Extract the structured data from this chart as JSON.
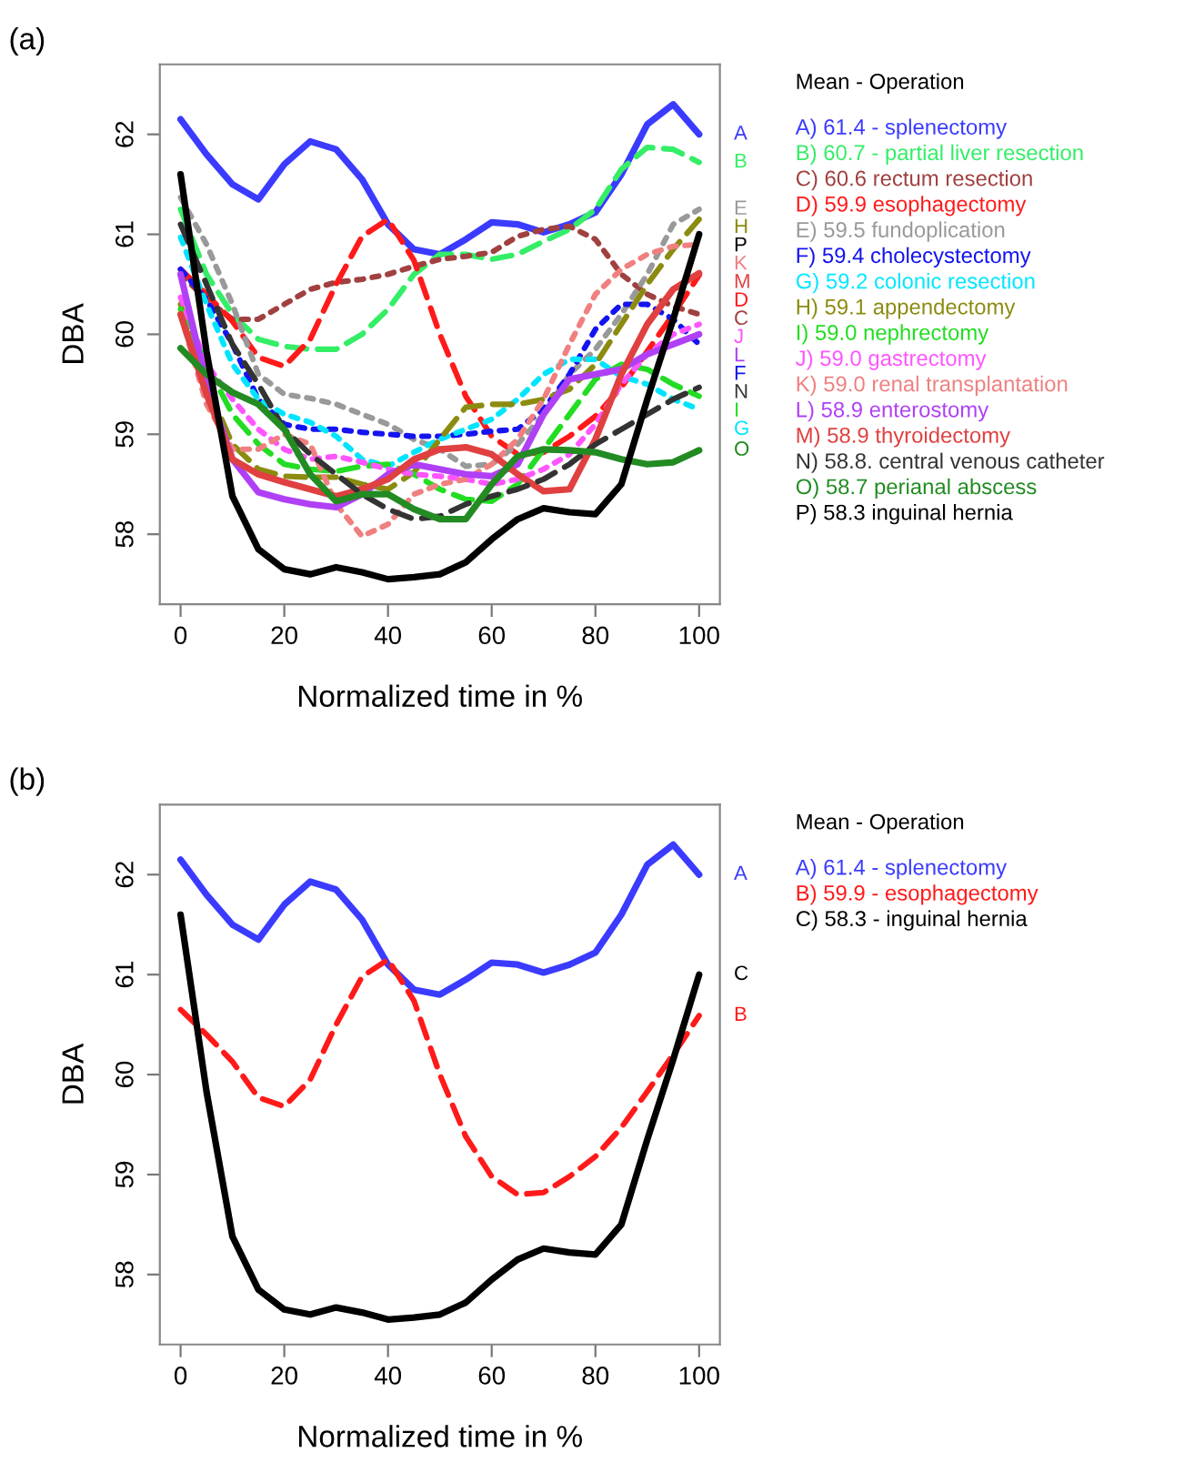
{
  "chart_data": [
    {
      "type": "line",
      "title": "(a)",
      "xlabel": "Normalized time in %",
      "ylabel": "DBA",
      "legend_title": "Mean - Operation",
      "legend": "right",
      "grid": false,
      "x": [
        0,
        5,
        10,
        15,
        20,
        25,
        30,
        35,
        40,
        45,
        50,
        55,
        60,
        65,
        70,
        75,
        80,
        85,
        90,
        95,
        100
      ],
      "xlim": [
        -4,
        104
      ],
      "ylim": [
        57.3,
        62.7
      ],
      "xticks": [
        0,
        20,
        40,
        60,
        80,
        100
      ],
      "yticks": [
        58,
        59,
        60,
        61,
        62
      ],
      "series": [
        {
          "name": "A) 61.4 - splenectomy",
          "color": "#3b3bff",
          "line_style": "solid",
          "values": [
            62.15,
            61.8,
            61.5,
            61.35,
            61.7,
            61.93,
            61.85,
            61.55,
            61.1,
            60.85,
            60.8,
            60.95,
            61.12,
            61.1,
            61.02,
            61.1,
            61.22,
            61.6,
            62.1,
            62.3,
            62.0
          ]
        },
        {
          "name": "B) 60.7 - partial liver resection",
          "color": "#33ee66",
          "line_style": "dashed",
          "values": [
            61.25,
            60.6,
            60.2,
            59.95,
            59.88,
            59.85,
            59.85,
            60.0,
            60.25,
            60.6,
            60.8,
            60.8,
            60.75,
            60.8,
            60.93,
            61.05,
            61.25,
            61.65,
            61.87,
            61.85,
            61.72
          ]
        },
        {
          "name": "C) 60.6 rectum resection",
          "color": "#a04040",
          "line_style": "dotted",
          "values": [
            60.6,
            60.35,
            60.15,
            60.15,
            60.3,
            60.45,
            60.52,
            60.55,
            60.6,
            60.68,
            60.75,
            60.78,
            60.82,
            60.98,
            61.05,
            61.08,
            60.95,
            60.6,
            60.4,
            60.28,
            60.2
          ]
        },
        {
          "name": "D) 59.9 esophagectomy",
          "color": "#ff1a1a",
          "line_style": "dashed",
          "values": [
            60.65,
            60.4,
            60.13,
            59.77,
            59.68,
            59.95,
            60.5,
            60.98,
            61.15,
            60.74,
            60.0,
            59.38,
            58.98,
            58.8,
            58.82,
            58.98,
            59.18,
            59.47,
            59.83,
            60.2,
            60.59
          ]
        },
        {
          "name": "E) 59.5 fundoplication",
          "color": "#999999",
          "line_style": "dotted",
          "values": [
            61.37,
            60.9,
            60.3,
            59.6,
            59.4,
            59.36,
            59.3,
            59.2,
            59.1,
            58.95,
            58.85,
            58.68,
            58.7,
            58.9,
            59.2,
            59.6,
            59.85,
            60.2,
            60.6,
            61.1,
            61.25
          ]
        },
        {
          "name": "F) 59.4 cholecystectomy",
          "color": "#1414f0",
          "line_style": "dotted",
          "values": [
            60.65,
            60.35,
            59.9,
            59.35,
            59.1,
            59.05,
            59.05,
            59.02,
            59.0,
            58.98,
            58.98,
            59.0,
            59.03,
            59.05,
            59.25,
            59.6,
            60.05,
            60.3,
            60.3,
            60.15,
            59.9
          ]
        },
        {
          "name": "G) 59.2 colonic resection",
          "color": "#00e5ff",
          "line_style": "dotted",
          "values": [
            60.97,
            60.3,
            59.7,
            59.35,
            59.2,
            59.12,
            58.98,
            58.75,
            58.68,
            58.82,
            58.95,
            59.05,
            59.15,
            59.35,
            59.6,
            59.75,
            59.75,
            59.58,
            59.5,
            59.35,
            59.25
          ]
        },
        {
          "name": "H) 59.1 appendectomy",
          "color": "#8b8b10",
          "line_style": "dashed",
          "values": [
            60.3,
            59.5,
            58.9,
            58.65,
            58.58,
            58.57,
            58.57,
            58.5,
            58.45,
            58.62,
            58.95,
            59.27,
            59.3,
            59.3,
            59.35,
            59.45,
            59.7,
            60.1,
            60.5,
            60.85,
            61.15
          ]
        },
        {
          "name": "I) 59.0 nephrectomy",
          "color": "#22dd22",
          "line_style": "dashed",
          "values": [
            60.25,
            59.7,
            59.2,
            58.9,
            58.7,
            58.65,
            58.63,
            58.68,
            58.7,
            58.6,
            58.45,
            58.35,
            58.33,
            58.5,
            58.85,
            59.2,
            59.55,
            59.7,
            59.65,
            59.5,
            59.38
          ]
        },
        {
          "name": "J) 59.0 gastrectomy",
          "color": "#ff55ff",
          "line_style": "dotted",
          "values": [
            60.37,
            59.7,
            59.35,
            59.05,
            58.85,
            58.75,
            58.78,
            58.72,
            58.65,
            58.6,
            58.58,
            58.55,
            58.5,
            58.55,
            58.65,
            58.8,
            59.1,
            59.5,
            59.8,
            60.0,
            60.1
          ]
        },
        {
          "name": "K) 59.0 renal transplantation",
          "color": "#f08080",
          "line_style": "dotted",
          "values": [
            60.2,
            59.3,
            58.85,
            58.85,
            59.0,
            58.9,
            58.3,
            57.98,
            58.1,
            58.4,
            58.5,
            58.55,
            58.7,
            58.95,
            59.35,
            59.9,
            60.4,
            60.65,
            60.8,
            60.88,
            60.9
          ]
        },
        {
          "name": "L) 58.9 enterostomy",
          "color": "#b040f5",
          "line_style": "solid",
          "values": [
            60.6,
            59.5,
            58.75,
            58.42,
            58.35,
            58.3,
            58.27,
            58.4,
            58.6,
            58.7,
            58.65,
            58.6,
            58.58,
            58.7,
            59.2,
            59.55,
            59.6,
            59.65,
            59.8,
            59.9,
            60.0
          ]
        },
        {
          "name": "M) 58.9 thyroidectomy",
          "color": "#e04040",
          "line_style": "solid",
          "values": [
            60.2,
            59.4,
            58.75,
            58.6,
            58.52,
            58.45,
            58.38,
            58.45,
            58.55,
            58.75,
            58.85,
            58.87,
            58.8,
            58.6,
            58.43,
            58.45,
            58.95,
            59.6,
            60.1,
            60.45,
            60.61
          ]
        },
        {
          "name": "N) 58.8. central venous catheter",
          "color": "#333333",
          "line_style": "dashed",
          "values": [
            61.1,
            60.5,
            59.9,
            59.5,
            59.05,
            58.8,
            58.6,
            58.4,
            58.25,
            58.15,
            58.18,
            58.3,
            58.38,
            58.45,
            58.55,
            58.7,
            58.9,
            59.05,
            59.2,
            59.35,
            59.47
          ]
        },
        {
          "name": "O) 58.7 perianal abscess",
          "color": "#228b22",
          "line_style": "solid",
          "values": [
            59.86,
            59.6,
            59.42,
            59.3,
            59.05,
            58.6,
            58.33,
            58.4,
            58.4,
            58.25,
            58.15,
            58.15,
            58.5,
            58.78,
            58.85,
            58.84,
            58.82,
            58.75,
            58.7,
            58.72,
            58.84
          ]
        },
        {
          "name": "P) 58.3 inguinal hernia",
          "color": "#000000",
          "line_style": "solid",
          "values": [
            61.6,
            59.83,
            58.38,
            57.85,
            57.65,
            57.6,
            57.67,
            57.62,
            57.55,
            57.57,
            57.6,
            57.72,
            57.95,
            58.15,
            58.26,
            58.22,
            58.2,
            58.5,
            59.35,
            60.15,
            61.0
          ]
        }
      ],
      "annotations": [
        "A",
        "B",
        "C",
        "D",
        "E",
        "F",
        "G",
        "H",
        "I",
        "J",
        "K",
        "L",
        "M",
        "N",
        "O",
        "P"
      ]
    },
    {
      "type": "line",
      "title": "(b)",
      "xlabel": "Normalized time in %",
      "ylabel": "DBA",
      "legend_title": "Mean - Operation",
      "legend": "right",
      "grid": false,
      "x": [
        0,
        5,
        10,
        15,
        20,
        25,
        30,
        35,
        40,
        45,
        50,
        55,
        60,
        65,
        70,
        75,
        80,
        85,
        90,
        95,
        100
      ],
      "xlim": [
        -4,
        104
      ],
      "ylim": [
        57.3,
        62.7
      ],
      "xticks": [
        0,
        20,
        40,
        60,
        80,
        100
      ],
      "yticks": [
        58,
        59,
        60,
        61,
        62
      ],
      "series": [
        {
          "name": "A) 61.4 - splenectomy",
          "color": "#3b3bff",
          "line_style": "solid",
          "values": [
            62.15,
            61.8,
            61.5,
            61.35,
            61.7,
            61.93,
            61.85,
            61.55,
            61.1,
            60.85,
            60.8,
            60.95,
            61.12,
            61.1,
            61.02,
            61.1,
            61.22,
            61.6,
            62.1,
            62.3,
            62.0
          ]
        },
        {
          "name": "B) 59.9 - esophagectomy",
          "color": "#ff1a1a",
          "line_style": "dashed",
          "values": [
            60.65,
            60.4,
            60.13,
            59.77,
            59.68,
            59.95,
            60.5,
            60.98,
            61.15,
            60.74,
            60.0,
            59.38,
            58.98,
            58.8,
            58.82,
            58.98,
            59.18,
            59.47,
            59.83,
            60.2,
            60.59
          ]
        },
        {
          "name": "C) 58.3 - inguinal hernia",
          "color": "#000000",
          "line_style": "solid",
          "values": [
            61.6,
            59.83,
            58.38,
            57.85,
            57.65,
            57.6,
            57.67,
            57.62,
            57.55,
            57.57,
            57.6,
            57.72,
            57.95,
            58.15,
            58.26,
            58.22,
            58.2,
            58.5,
            59.35,
            60.15,
            61.0
          ]
        }
      ],
      "annotations": [
        "A",
        "B",
        "C"
      ]
    }
  ]
}
